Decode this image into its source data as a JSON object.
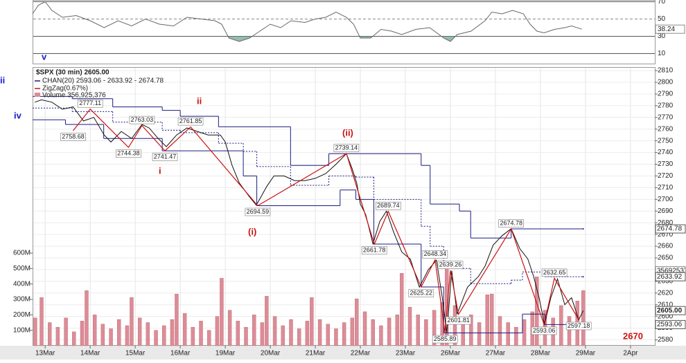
{
  "chart_data": [
    {
      "type": "line",
      "series": [
        {
          "color": "#666666",
          "x": [
            -0.28,
            -0.15,
            0,
            0.15,
            0.38,
            0.69,
            1,
            1.31,
            1.62,
            1.92,
            2.23,
            2.54,
            2.85,
            3.15,
            3.46,
            3.77,
            3.92,
            4.08,
            4.31,
            4.54,
            4.77,
            5,
            5.23,
            5.46,
            5.77,
            6,
            6.23,
            6.46,
            6.69,
            6.85,
            7,
            7.23,
            7.46,
            7.69,
            7.92,
            8.23,
            8.54,
            8.85,
            9,
            9.15,
            9.46,
            9.77,
            9.92,
            10.15,
            10.38,
            10.62,
            10.77,
            10.92,
            11.08,
            11.31,
            11.54,
            11.69,
            11.92
          ],
          "values": [
            56,
            66,
            70,
            60,
            52,
            54,
            48,
            40,
            48,
            42,
            50,
            44,
            42,
            52,
            50,
            48,
            44,
            28,
            24,
            28,
            36,
            44,
            40,
            48,
            46,
            50,
            52,
            58,
            52,
            44,
            28,
            28,
            38,
            36,
            32,
            38,
            40,
            28,
            24,
            32,
            36,
            48,
            58,
            56,
            60,
            56,
            44,
            36,
            34,
            38,
            40,
            42,
            38.24
          ]
        }
      ],
      "ylim": [
        0,
        72
      ],
      "yticks": [
        70,
        50,
        30,
        10
      ]
    },
    {
      "type": "line",
      "title": "$SPX (30 min) 2605.00",
      "series": [
        {
          "color": "#111111",
          "x": [
            -0.23,
            -0.08,
            0.15,
            0.38,
            0.62,
            0.85,
            1.08,
            1.31,
            1.46,
            1.69,
            1.92,
            2.15,
            2.31,
            2.51,
            2.69,
            2.92,
            3.15,
            3.38,
            3.62,
            3.89,
            4.0,
            4.15,
            4.31,
            4.54,
            4.69,
            4.92,
            5.08,
            5.31,
            5.54,
            5.77,
            6.0,
            6.23,
            6.46,
            6.69,
            6.82,
            6.92,
            7.0,
            7.12,
            7.28,
            7.43,
            7.58,
            7.74,
            7.92,
            8.11,
            8.31,
            8.51,
            8.69,
            8.82,
            8.92,
            9.03,
            9.15,
            9.38,
            9.62,
            9.77,
            9.95,
            10.15,
            10.35,
            10.54,
            10.72,
            10.85,
            10.97,
            11.09,
            11.23,
            11.38,
            11.54,
            11.69,
            11.85,
            11.95
          ],
          "values": [
            2783,
            2785,
            2783,
            2777,
            2779,
            2767,
            2770,
            2755,
            2749,
            2758,
            2752,
            2764,
            2761,
            2752,
            2745,
            2755,
            2761,
            2758,
            2755,
            2755,
            2749,
            2729,
            2714,
            2702,
            2695,
            2711,
            2720,
            2720,
            2716,
            2716,
            2718,
            2722,
            2730,
            2739,
            2726,
            2714,
            2696,
            2687,
            2662,
            2681,
            2690,
            2672,
            2655,
            2649,
            2625,
            2640,
            2648,
            2616,
            2586,
            2639,
            2602,
            2625,
            2634,
            2643,
            2661,
            2669,
            2675,
            2658,
            2649,
            2634,
            2616,
            2593,
            2616,
            2632,
            2610,
            2616,
            2597,
            2605
          ]
        }
      ],
      "channel": {
        "name": "CHAN(20) 2593.06 - 2633.92 - 2674.78",
        "color": "#1a1a80",
        "upper": {
          "x": [
            -0.28,
            0.6,
            1.5,
            2.6,
            3.0,
            3.85,
            5.45,
            6.3,
            8.35,
            8.55,
            9.2,
            9.45,
            10.35,
            11.95
          ],
          "values": [
            2788,
            2786,
            2779,
            2776,
            2771,
            2762,
            2729,
            2739,
            2729,
            2696,
            2690,
            2667,
            2674.78,
            2674.78
          ]
        },
        "middle": {
          "x": [
            -0.28,
            0.6,
            1.5,
            2.6,
            3.0,
            3.85,
            4.4,
            4.7,
            5.45,
            6.3,
            6.9,
            7.3,
            8.35,
            8.55,
            8.85,
            9.45,
            10.35,
            10.6,
            11.1,
            11.95
          ],
          "values": [
            2778,
            2775,
            2766,
            2759,
            2757,
            2748,
            2741,
            2728,
            2712,
            2720,
            2719,
            2700,
            2677,
            2660,
            2641,
            2628,
            2631,
            2638,
            2633.92,
            2633.92
          ]
        },
        "lower": {
          "x": [
            -0.28,
            0.45,
            1.3,
            2.6,
            4.4,
            4.7,
            6.55,
            6.9,
            7.3,
            8.35,
            8.85,
            10.6,
            11.1,
            11.95
          ],
          "values": [
            2768,
            2764,
            2752,
            2741.47,
            2720,
            2694.59,
            2708,
            2700,
            2661.78,
            2625.22,
            2585.89,
            2602,
            2593.06,
            2593.06
          ]
        }
      },
      "zigzag": {
        "name": "ZigZag(0.67%)",
        "color": "#cc1111",
        "x": [
          0.62,
          1.0,
          1.85,
          2.15,
          2.66,
          3.23,
          4.72,
          6.69,
          7.31,
          7.62,
          8.35,
          8.66,
          8.88,
          9.0,
          9.18,
          10.35,
          11.08,
          11.31,
          11.85
        ],
        "values": [
          2758.68,
          2777.11,
          2744.38,
          2763.03,
          2741.47,
          2761.85,
          2694.59,
          2739.14,
          2661.78,
          2689.74,
          2625.22,
          2648.34,
          2585.89,
          2639.26,
          2601.81,
          2674.78,
          2593.06,
          2632.65,
          2597.18
        ]
      },
      "markers": [
        2674.78,
        2633.92,
        {
          "value": 2605,
          "label": "2605.00"
        },
        2593.06
      ],
      "annotations": [
        "v",
        "ii",
        "iv",
        "ii",
        "i",
        "(i)",
        "(ii)",
        "2670"
      ],
      "xlim": [
        -0.28,
        13.54
      ],
      "xticks": [
        {
          "value": 0,
          "label": "13Mar"
        },
        {
          "value": 1,
          "label": "14Mar"
        },
        {
          "value": 2,
          "label": "15Mar"
        },
        {
          "value": 3,
          "label": "16Mar"
        },
        {
          "value": 4,
          "label": "19Mar"
        },
        {
          "value": 5,
          "label": "20Mar"
        },
        {
          "value": 6,
          "label": "21Mar"
        },
        {
          "value": 7,
          "label": "22Mar"
        },
        {
          "value": 8,
          "label": "23Mar"
        },
        {
          "value": 9,
          "label": "26Mar"
        },
        {
          "value": 10,
          "label": "27Mar"
        },
        {
          "value": 11,
          "label": "28Mar"
        },
        {
          "value": 12,
          "label": "29Mar"
        },
        {
          "value": 13,
          "label": "2Apr"
        }
      ],
      "ylim": [
        2575,
        2813
      ],
      "yticks": [
        2580,
        2590,
        2600,
        2610,
        2620,
        2630,
        2640,
        2650,
        2660,
        2670,
        2680,
        2690,
        2700,
        2710,
        2720,
        2730,
        2740,
        2750,
        2760,
        2770,
        2780,
        2790,
        2800,
        2810
      ],
      "grid": true
    },
    {
      "type": "bar",
      "series": [
        {
          "name": "Volume 356,925,376",
          "color": "#dc8c98",
          "x": [
            -0.22,
            -0.08,
            0.1,
            0.28,
            0.46,
            0.64,
            0.82,
            0.92,
            1.1,
            1.28,
            1.46,
            1.64,
            1.82,
            1.92,
            2.1,
            2.28,
            2.46,
            2.64,
            2.82,
            2.92,
            3.1,
            3.28,
            3.46,
            3.64,
            3.82,
            3.92,
            4.1,
            4.28,
            4.46,
            4.64,
            4.82,
            4.92,
            5.1,
            5.28,
            5.46,
            5.64,
            5.82,
            5.92,
            6.1,
            6.28,
            6.46,
            6.64,
            6.82,
            6.92,
            7.1,
            7.28,
            7.46,
            7.64,
            7.82,
            7.92,
            8.1,
            8.28,
            8.46,
            8.64,
            8.82,
            8.92,
            9.1,
            9.28,
            9.46,
            9.64,
            9.82,
            9.92,
            10.1,
            10.28,
            10.46,
            10.64,
            10.82,
            10.92,
            11.1,
            11.28,
            11.46,
            11.64,
            11.82,
            11.95
          ],
          "values": [
            180000000,
            312000000,
            150000000,
            120000000,
            180000000,
            90000000,
            160000000,
            357000000,
            200000000,
            140000000,
            110000000,
            170000000,
            130000000,
            312000000,
            180000000,
            150000000,
            100000000,
            130000000,
            170000000,
            335000000,
            210000000,
            120000000,
            160000000,
            100000000,
            190000000,
            437000000,
            230000000,
            160000000,
            120000000,
            200000000,
            150000000,
            321000000,
            190000000,
            130000000,
            170000000,
            110000000,
            160000000,
            312000000,
            170000000,
            140000000,
            110000000,
            150000000,
            180000000,
            304000000,
            220000000,
            170000000,
            130000000,
            180000000,
            200000000,
            469000000,
            250000000,
            200000000,
            170000000,
            230000000,
            280000000,
            500000000,
            260000000,
            180000000,
            200000000,
            150000000,
            330000000,
            335000000,
            190000000,
            150000000,
            120000000,
            170000000,
            220000000,
            446000000,
            230000000,
            180000000,
            260000000,
            190000000,
            290000000,
            356925376
          ]
        }
      ],
      "ylim": [
        0,
        600000000
      ],
      "yticks": [
        {
          "value": 100000000,
          "label": "100M"
        },
        {
          "value": 200000000,
          "label": "200M"
        },
        {
          "value": 300000000,
          "label": "300M"
        },
        {
          "value": 400000000,
          "label": "400M"
        },
        {
          "value": 500000000,
          "label": "500M"
        },
        {
          "value": 600000000,
          "label": "600M"
        }
      ]
    }
  ]
}
